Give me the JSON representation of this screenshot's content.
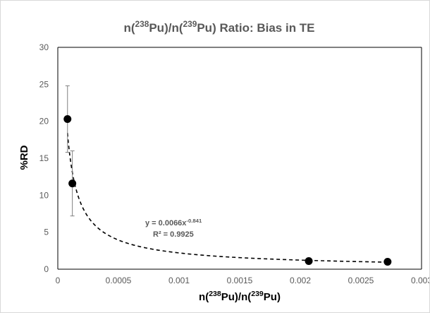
{
  "chart_data": {
    "type": "scatter",
    "title": {
      "parts": [
        {
          "text": "n("
        },
        {
          "text": "238",
          "sup": true
        },
        {
          "text": "Pu)/n("
        },
        {
          "text": "239",
          "sup": true
        },
        {
          "text": "Pu) Ratio: Bias in TE"
        }
      ]
    },
    "xlabel": {
      "parts": [
        {
          "text": "n("
        },
        {
          "text": "238",
          "sup": true
        },
        {
          "text": "Pu)/n("
        },
        {
          "text": "239",
          "sup": true
        },
        {
          "text": "Pu)"
        }
      ]
    },
    "ylabel": "%RD",
    "xlim": [
      0,
      0.003
    ],
    "ylim": [
      0,
      30
    ],
    "x_ticks": [
      0,
      0.0005,
      0.001,
      0.0015,
      0.002,
      0.0025,
      0.003
    ],
    "x_tick_labels": [
      "0",
      "0.0005",
      "0.001",
      "0.0015",
      "0.002",
      "0.0025",
      "0.003"
    ],
    "y_ticks": [
      0,
      5,
      10,
      15,
      20,
      25,
      30
    ],
    "y_tick_labels": [
      "0",
      "5",
      "10",
      "15",
      "20",
      "25",
      "30"
    ],
    "grid": false,
    "points": [
      {
        "x": 8e-05,
        "y": 20.3,
        "err": 4.5
      },
      {
        "x": 0.00012,
        "y": 11.6,
        "err": 4.4
      },
      {
        "x": 0.00207,
        "y": 1.1
      },
      {
        "x": 0.00272,
        "y": 1.0
      }
    ],
    "trendline": {
      "type": "power",
      "coef": 0.0066,
      "exponent": -0.841,
      "x_range": [
        8e-05,
        0.00275
      ],
      "equation": {
        "prefix": "y = 0.0066x",
        "exponent_label": "-0.841"
      },
      "r2_label": "R² = 0.9925"
    },
    "colors": {
      "marker": "#000000",
      "trend": "#000000",
      "axis": "#000000",
      "text": "#595959",
      "error_bar": "#808080"
    }
  }
}
